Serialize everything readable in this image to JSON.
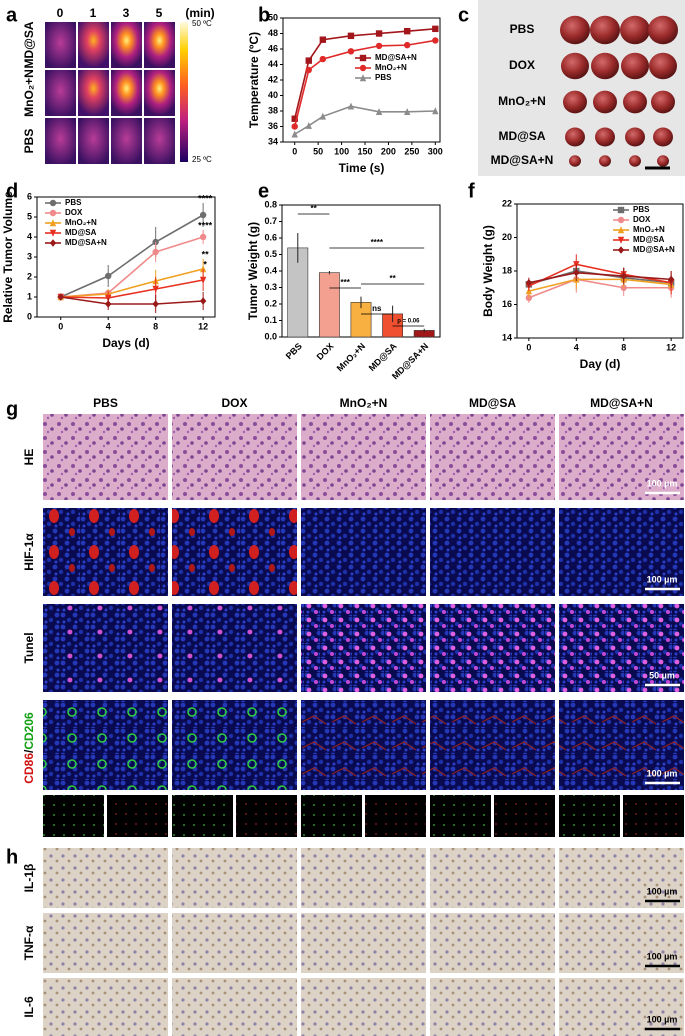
{
  "panel_labels": [
    "a",
    "b",
    "c",
    "d",
    "e",
    "f",
    "g",
    "h"
  ],
  "panel_a": {
    "times": [
      "0",
      "1",
      "3",
      "5"
    ],
    "unit": "(min)",
    "rows": [
      "MD@SA",
      "MnO₂+N",
      "PBS"
    ],
    "colorbar_max": "50 ºC",
    "colorbar_min": "25 ºC"
  },
  "panel_c": {
    "rows": [
      "PBS",
      "DOX",
      "MnO₂+N",
      "MD@SA",
      "MD@SA+N"
    ]
  },
  "chart_data": [
    {
      "type": "line",
      "xlabel": "Time (s)",
      "ylabel": "Temperature (ºC)",
      "x": [
        0,
        30,
        60,
        120,
        180,
        240,
        300
      ],
      "xlim": [
        -25,
        310
      ],
      "xticks": [
        0,
        50,
        100,
        150,
        200,
        250,
        300
      ],
      "ylim": [
        34,
        50
      ],
      "yticks": [
        34,
        36,
        38,
        40,
        42,
        44,
        46,
        48,
        50
      ],
      "legend": "center right",
      "series": [
        {
          "name": "MD@SA+N",
          "color": "#a3161b",
          "marker": "square",
          "values": [
            37.0,
            44.5,
            47.2,
            47.7,
            48.0,
            48.3,
            48.6
          ]
        },
        {
          "name": "MnO₂+N",
          "color": "#e02a2a",
          "marker": "circle",
          "values": [
            36.0,
            43.3,
            44.7,
            45.7,
            46.4,
            46.5,
            47.1
          ]
        },
        {
          "name": "PBS",
          "color": "#8c8c8c",
          "marker": "triangle",
          "values": [
            35.0,
            36.1,
            37.3,
            38.6,
            37.9,
            37.9,
            38.0
          ]
        }
      ]
    },
    {
      "type": "line",
      "xlabel": "Days (d)",
      "ylabel": "Relative Tumor Volume",
      "x": [
        0,
        4,
        8,
        12
      ],
      "xlim": [
        -2,
        13
      ],
      "xticks": [
        0,
        4,
        8,
        12
      ],
      "ylim": [
        0,
        6
      ],
      "yticks": [
        0,
        1,
        2,
        3,
        4,
        5,
        6
      ],
      "legend": "upper left",
      "series": [
        {
          "name": "PBS",
          "color": "#6e6e6e",
          "marker": "circle",
          "values": [
            1,
            2.05,
            3.75,
            5.1
          ],
          "errors": [
            0,
            0.55,
            0.75,
            0.6
          ],
          "annotation": "****"
        },
        {
          "name": "DOX",
          "color": "#f08a8a",
          "marker": "circle",
          "values": [
            1,
            1.2,
            3.25,
            4.0
          ],
          "errors": [
            0,
            0.15,
            0.5,
            0.35
          ],
          "annotation": "****"
        },
        {
          "name": "MnO₂+N",
          "color": "#f0a020",
          "marker": "triangle",
          "values": [
            1,
            1.15,
            1.8,
            2.4
          ],
          "errors": [
            0,
            0.25,
            0.55,
            0.5
          ],
          "annotation": "**"
        },
        {
          "name": "MD@SA",
          "color": "#e83020",
          "marker": "triangle-down",
          "values": [
            1,
            0.95,
            1.4,
            1.85
          ],
          "errors": [
            0,
            0.35,
            0.6,
            0.55
          ],
          "annotation": "*"
        },
        {
          "name": "MD@SA+N",
          "color": "#9a1a1a",
          "marker": "diamond",
          "values": [
            1,
            0.65,
            0.65,
            0.8
          ],
          "errors": [
            0,
            0.3,
            0.45,
            0.45
          ]
        }
      ]
    },
    {
      "type": "bar",
      "ylabel": "Tumor Weight (g)",
      "categories": [
        "PBS",
        "DOX",
        "MnO₂+N",
        "MD@SA",
        "MD@SA+N"
      ],
      "values": [
        0.54,
        0.39,
        0.21,
        0.14,
        0.04
      ],
      "errors": [
        0.09,
        0.01,
        0.035,
        0.05,
        0.01
      ],
      "colors": [
        "#c4c4c4",
        "#f4a090",
        "#f8b040",
        "#f05030",
        "#a01818"
      ],
      "ylim": [
        0,
        0.8
      ],
      "yticks": [
        {
          "value": 0,
          "label": "0.0"
        },
        0.1,
        0.2,
        0.3,
        0.4,
        0.5,
        0.6,
        0.7,
        0.8
      ],
      "significance": [
        "**",
        "***",
        "****",
        "ns",
        "**",
        "p = 0.06"
      ]
    },
    {
      "type": "line",
      "xlabel": "Day (d)",
      "ylabel": "Body Weight (g)",
      "x": [
        0,
        4,
        8,
        12
      ],
      "xlim": [
        -1,
        13
      ],
      "xticks": [
        0,
        4,
        8,
        12
      ],
      "ylim": [
        14,
        22
      ],
      "yticks": [
        14,
        16,
        18,
        20,
        22
      ],
      "legend": "upper right",
      "series": [
        {
          "name": "PBS",
          "color": "#6e6e6e",
          "marker": "square",
          "values": [
            17.2,
            18.0,
            17.6,
            17.3
          ],
          "errors": [
            0.3,
            0.5,
            0.6,
            0.5
          ]
        },
        {
          "name": "DOX",
          "color": "#f08a8a",
          "marker": "circle",
          "values": [
            16.4,
            17.5,
            17.0,
            17.0
          ],
          "errors": [
            0.3,
            0.8,
            0.5,
            0.6
          ]
        },
        {
          "name": "MnO₂+N",
          "color": "#f0a020",
          "marker": "triangle",
          "values": [
            16.8,
            17.5,
            17.5,
            17.2
          ],
          "errors": [
            0.4,
            0.6,
            0.5,
            0.5
          ]
        },
        {
          "name": "MD@SA",
          "color": "#e83020",
          "marker": "triangle-down",
          "values": [
            17.1,
            18.4,
            17.8,
            17.3
          ],
          "errors": [
            0.3,
            0.6,
            0.4,
            0.7
          ]
        },
        {
          "name": "MD@SA+N",
          "color": "#9a1a1a",
          "marker": "diamond",
          "values": [
            17.3,
            17.9,
            17.7,
            17.5
          ],
          "errors": [
            0.3,
            0.5,
            0.5,
            0.5
          ]
        }
      ]
    }
  ],
  "panel_g": {
    "columns": [
      "PBS",
      "DOX",
      "MnO₂+N",
      "MD@SA",
      "MD@SA+N"
    ],
    "rows": [
      "HE",
      "HIF-1α",
      "Tunel"
    ],
    "cd_red": "CD86",
    "cd_sep": "/",
    "cd_green": "CD206",
    "scale_bars": [
      "100 µm",
      "100 µm",
      "50 µm",
      "100 µm"
    ]
  },
  "panel_h": {
    "rows": [
      "IL-1β",
      "TNF-α",
      "IL-6"
    ],
    "scale_bars": [
      "100 µm",
      "100 µm",
      "100 µm"
    ]
  }
}
